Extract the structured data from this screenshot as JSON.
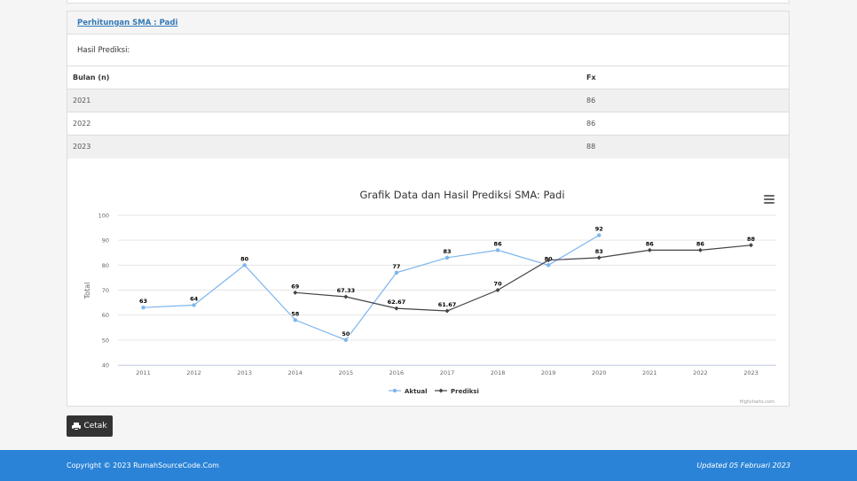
{
  "panel": {
    "heading_link": "Perhitungan SMA : Padi",
    "result_label": "Hasil Prediksi:"
  },
  "table": {
    "headers": [
      "Bulan (n)",
      "Fx"
    ],
    "rows": [
      [
        "2021",
        "86"
      ],
      [
        "2022",
        "86"
      ],
      [
        "2023",
        "88"
      ]
    ]
  },
  "chart_data": {
    "type": "line",
    "title": "Grafik Data dan Hasil Prediksi SMA: Padi",
    "ylabel": "Total",
    "xlabel": "",
    "x": [
      "2011",
      "2012",
      "2013",
      "2014",
      "2015",
      "2016",
      "2017",
      "2018",
      "2019",
      "2020",
      "2021",
      "2022",
      "2023"
    ],
    "yticks": [
      40,
      50,
      60,
      70,
      80,
      90,
      100
    ],
    "ylim": [
      40,
      100
    ],
    "grid": true,
    "legend_position": "bottom-center",
    "credits": "Highcharts.com",
    "series": [
      {
        "name": "Aktual",
        "color": "#7cb5ec",
        "marker": "circle",
        "values": [
          63,
          64,
          80,
          58,
          50,
          77,
          83,
          86,
          80,
          92,
          null,
          null,
          null
        ],
        "labels": [
          "63",
          "64",
          "80",
          "58",
          "50",
          "77",
          "83",
          "86",
          "80",
          "92",
          null,
          null,
          null
        ]
      },
      {
        "name": "Prediksi",
        "color": "#434348",
        "marker": "diamond",
        "values": [
          null,
          null,
          null,
          69,
          67.33,
          62.67,
          61.67,
          70,
          82,
          83,
          86,
          86,
          88
        ],
        "labels": [
          null,
          null,
          null,
          "69",
          "67.33",
          "62.67",
          "61.67",
          "70",
          null,
          "83",
          "86",
          "86",
          "88"
        ]
      }
    ]
  },
  "print_button": {
    "label": "Cetak",
    "icon": "print-icon"
  },
  "footer": {
    "copyright": "Copyright © 2023 RumahSourceCode.Com",
    "updated": "Updated 05 Februari 2023"
  }
}
